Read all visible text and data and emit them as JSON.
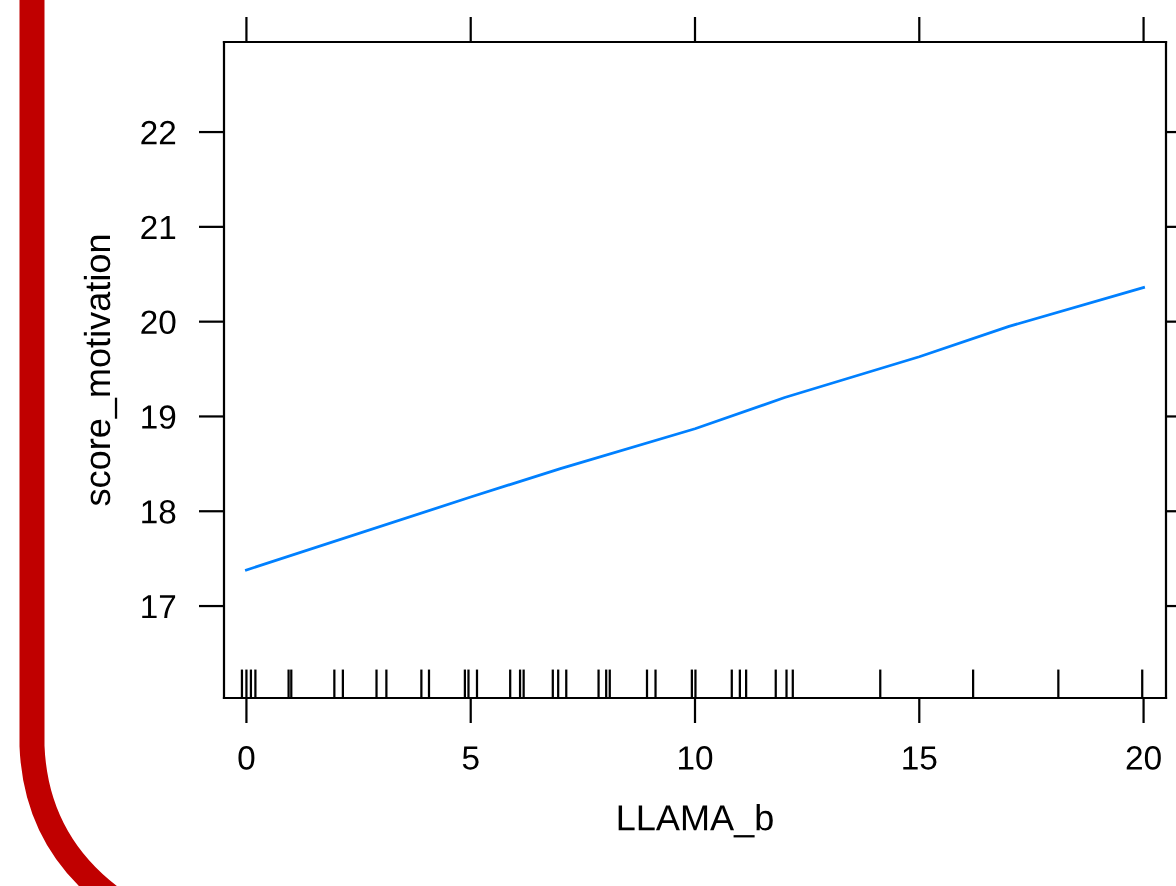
{
  "chart_data": {
    "type": "line",
    "xlabel": "LLAMA_b",
    "ylabel": "score_motivation",
    "xlim": [
      -0.5,
      20.5
    ],
    "ylim": [
      16.03,
      22.95
    ],
    "xticks": [
      0,
      5,
      10,
      15,
      20
    ],
    "yticks": [
      17,
      18,
      19,
      20,
      21,
      22
    ],
    "grid": false,
    "legend": false,
    "series": [
      {
        "color": "#0080ff",
        "x": [
          0,
          5,
          7,
          10,
          12,
          15,
          17,
          20
        ],
        "values": [
          17.38,
          18.15,
          18.45,
          18.87,
          19.2,
          19.63,
          19.95,
          20.36
        ]
      },
      {
        "type": "bar",
        "color": "#000000",
        "base": [
          16.03,
          16.03,
          16.03,
          16.03,
          16.03,
          16.03,
          16.03,
          16.03,
          16.03,
          16.03,
          16.03,
          16.03,
          16.03,
          16.03,
          16.03,
          16.03,
          16.03,
          16.03,
          16.03,
          16.03,
          16.03,
          16.03,
          16.03,
          16.03,
          16.03,
          16.03,
          16.03,
          16.03,
          16.03,
          16.03,
          16.03,
          16.03,
          16.03,
          16.03,
          16.03,
          16.03,
          16.03,
          16.03
        ],
        "x": [
          -0.1,
          0,
          0.1,
          0.2,
          0.94,
          1.0,
          1.96,
          2.15,
          2.9,
          3.12,
          3.9,
          4.07,
          4.87,
          4.95,
          5.14,
          5.88,
          6.1,
          6.18,
          6.83,
          6.95,
          7.13,
          7.85,
          8.02,
          8.1,
          8.93,
          9.12,
          9.93,
          10.01,
          10.82,
          11.0,
          11.14,
          11.8,
          12.04,
          12.18,
          14.13,
          16.2,
          18.1,
          19.97
        ],
        "values": [
          0.3,
          0.3,
          0.3,
          0.3,
          0.3,
          0.3,
          0.3,
          0.3,
          0.3,
          0.3,
          0.3,
          0.3,
          0.3,
          0.3,
          0.3,
          0.3,
          0.3,
          0.3,
          0.3,
          0.3,
          0.3,
          0.3,
          0.3,
          0.3,
          0.3,
          0.3,
          0.3,
          0.3,
          0.3,
          0.3,
          0.3,
          0.3,
          0.3,
          0.3,
          0.3,
          0.3,
          0.3,
          0.3
        ]
      }
    ]
  }
}
